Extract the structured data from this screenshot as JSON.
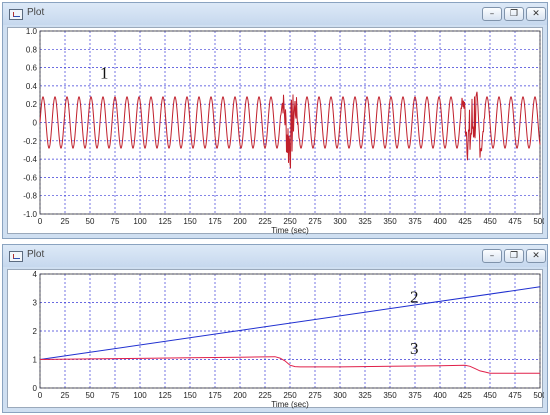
{
  "windows": [
    {
      "title": "Plot",
      "controls": {
        "minimize": "–",
        "maximize": "❐",
        "close": "✕"
      }
    },
    {
      "title": "Plot",
      "controls": {
        "minimize": "–",
        "maximize": "❐",
        "close": "✕"
      }
    }
  ],
  "chart_data": [
    {
      "type": "line",
      "xlabel": "Time (sec)",
      "ylabel": "",
      "xlim": [
        0,
        500
      ],
      "ylim": [
        -1.0,
        1.0
      ],
      "x_ticks": [
        0,
        25,
        50,
        75,
        100,
        125,
        150,
        175,
        200,
        225,
        250,
        275,
        300,
        325,
        350,
        375,
        400,
        425,
        450,
        475,
        500
      ],
      "y_ticks": [
        "1.0",
        "0.8",
        "0.6",
        "0.4",
        "0.2",
        "0",
        "-0.2",
        "-0.4",
        "-0.6",
        "-0.8",
        "-1.0"
      ],
      "grid": true,
      "annotations": [
        {
          "text": "1",
          "x": 60,
          "y": 0.48
        }
      ],
      "series": [
        {
          "color": "#c0202c",
          "description_shape": "sinusoid",
          "amplitude": 0.28,
          "period_sec": 12,
          "bursts": [
            {
              "start": 240,
              "end": 260,
              "min": -0.5,
              "max": 0.36
            },
            {
              "start": 420,
              "end": 445,
              "min": -0.52,
              "max": 0.42
            }
          ]
        }
      ]
    },
    {
      "type": "line",
      "xlabel": "Time (sec)",
      "ylabel": "",
      "xlim": [
        0,
        500
      ],
      "ylim": [
        0,
        4
      ],
      "x_ticks": [
        0,
        25,
        50,
        75,
        100,
        125,
        150,
        175,
        200,
        225,
        250,
        275,
        300,
        325,
        350,
        375,
        400,
        425,
        450,
        475,
        500
      ],
      "y_ticks": [
        "0",
        "1",
        "2",
        "3",
        "4"
      ],
      "grid": true,
      "annotations": [
        {
          "text": "2",
          "x": 370,
          "y": 3.0
        },
        {
          "text": "3",
          "x": 370,
          "y": 1.2
        }
      ],
      "series": [
        {
          "color": "#2030d0",
          "x": [
            0,
            500
          ],
          "y": [
            1.0,
            3.55
          ]
        },
        {
          "color": "#e0204a",
          "x": [
            0,
            50,
            100,
            150,
            200,
            235,
            240,
            245,
            250,
            255,
            260,
            300,
            350,
            400,
            425,
            430,
            435,
            440,
            445,
            450,
            455,
            460,
            500
          ],
          "y": [
            1.0,
            1.02,
            1.04,
            1.06,
            1.08,
            1.1,
            1.05,
            0.95,
            0.8,
            0.75,
            0.74,
            0.74,
            0.76,
            0.78,
            0.8,
            0.76,
            0.68,
            0.6,
            0.56,
            0.52,
            0.52,
            0.52,
            0.52
          ]
        }
      ]
    }
  ]
}
